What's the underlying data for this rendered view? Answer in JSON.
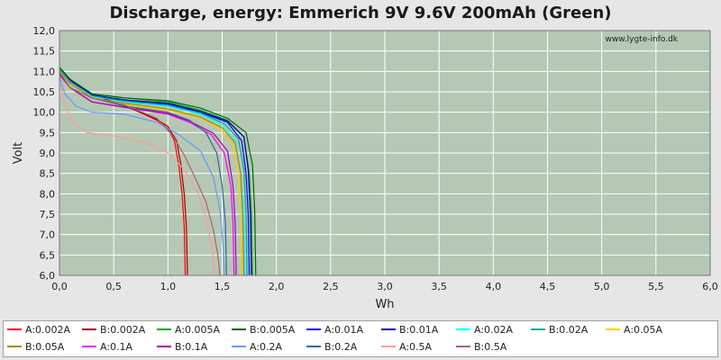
{
  "chart_data": {
    "type": "line",
    "title": "Discharge, energy: Emmerich 9V 9.6V 200mAh (Green)",
    "xlabel": "Wh",
    "ylabel": "Volt",
    "xlim": [
      0,
      6
    ],
    "ylim": [
      6,
      12
    ],
    "xticks": [
      "0,0",
      "0,5",
      "1,0",
      "1,5",
      "2,0",
      "2,5",
      "3,0",
      "3,5",
      "4,0",
      "4,5",
      "5,0",
      "5,5",
      "6,0"
    ],
    "yticks": [
      "6,0",
      "6,5",
      "7,0",
      "7,5",
      "8,0",
      "8,5",
      "9,0",
      "9,5",
      "10,0",
      "10,5",
      "11,0",
      "11,5",
      "12,0"
    ],
    "grid": true,
    "watermark": "www.lygte-info.dk",
    "legend_position": "bottom",
    "plot_background": "#b4c8b4",
    "series": [
      {
        "name": "A:0.002A",
        "color": "#ff0000",
        "points": [
          [
            0,
            11.05
          ],
          [
            0.1,
            10.75
          ],
          [
            0.3,
            10.45
          ],
          [
            0.5,
            10.25
          ],
          [
            0.7,
            10.05
          ],
          [
            0.9,
            9.8
          ],
          [
            1.0,
            9.6
          ],
          [
            1.06,
            9.3
          ],
          [
            1.1,
            8.7
          ],
          [
            1.13,
            8.0
          ],
          [
            1.15,
            7.2
          ],
          [
            1.16,
            6.0
          ]
        ]
      },
      {
        "name": "B:0.002A",
        "color": "#aa0000",
        "points": [
          [
            0,
            11.05
          ],
          [
            0.1,
            10.75
          ],
          [
            0.3,
            10.45
          ],
          [
            0.5,
            10.25
          ],
          [
            0.7,
            10.05
          ],
          [
            0.9,
            9.82
          ],
          [
            1.0,
            9.65
          ],
          [
            1.08,
            9.3
          ],
          [
            1.12,
            8.7
          ],
          [
            1.15,
            8.0
          ],
          [
            1.17,
            7.2
          ],
          [
            1.18,
            6.0
          ]
        ]
      },
      {
        "name": "A:0.005A",
        "color": "#00aa00",
        "points": [
          [
            0,
            11.1
          ],
          [
            0.1,
            10.8
          ],
          [
            0.3,
            10.45
          ],
          [
            0.6,
            10.35
          ],
          [
            1.0,
            10.25
          ],
          [
            1.3,
            10.05
          ],
          [
            1.55,
            9.8
          ],
          [
            1.7,
            9.4
          ],
          [
            1.75,
            8.5
          ],
          [
            1.77,
            7.5
          ],
          [
            1.78,
            6.0
          ]
        ]
      },
      {
        "name": "B:0.005A",
        "color": "#006600",
        "points": [
          [
            0,
            11.1
          ],
          [
            0.1,
            10.8
          ],
          [
            0.3,
            10.45
          ],
          [
            0.6,
            10.35
          ],
          [
            1.0,
            10.28
          ],
          [
            1.3,
            10.1
          ],
          [
            1.55,
            9.85
          ],
          [
            1.72,
            9.5
          ],
          [
            1.78,
            8.7
          ],
          [
            1.8,
            7.6
          ],
          [
            1.81,
            6.0
          ]
        ]
      },
      {
        "name": "A:0.01A",
        "color": "#0000ff",
        "points": [
          [
            0,
            11.05
          ],
          [
            0.1,
            10.78
          ],
          [
            0.3,
            10.42
          ],
          [
            0.6,
            10.3
          ],
          [
            1.0,
            10.2
          ],
          [
            1.3,
            10.0
          ],
          [
            1.55,
            9.75
          ],
          [
            1.68,
            9.3
          ],
          [
            1.72,
            8.5
          ],
          [
            1.74,
            7.5
          ],
          [
            1.75,
            6.0
          ]
        ]
      },
      {
        "name": "B:0.01A",
        "color": "#0000aa",
        "points": [
          [
            0,
            11.05
          ],
          [
            0.1,
            10.78
          ],
          [
            0.3,
            10.42
          ],
          [
            0.6,
            10.3
          ],
          [
            1.0,
            10.22
          ],
          [
            1.3,
            10.02
          ],
          [
            1.55,
            9.78
          ],
          [
            1.7,
            9.4
          ],
          [
            1.74,
            8.6
          ],
          [
            1.76,
            7.5
          ],
          [
            1.77,
            6.0
          ]
        ]
      },
      {
        "name": "A:0.02A",
        "color": "#00ffff",
        "points": [
          [
            0,
            11.05
          ],
          [
            0.1,
            10.75
          ],
          [
            0.3,
            10.4
          ],
          [
            0.6,
            10.25
          ],
          [
            1.0,
            10.15
          ],
          [
            1.3,
            9.95
          ],
          [
            1.5,
            9.7
          ],
          [
            1.62,
            9.3
          ],
          [
            1.67,
            8.5
          ],
          [
            1.7,
            7.5
          ],
          [
            1.71,
            6.0
          ]
        ]
      },
      {
        "name": "B:0.02A",
        "color": "#00aaaa",
        "points": [
          [
            0,
            11.05
          ],
          [
            0.1,
            10.75
          ],
          [
            0.3,
            10.4
          ],
          [
            0.6,
            10.27
          ],
          [
            1.0,
            10.17
          ],
          [
            1.3,
            9.98
          ],
          [
            1.52,
            9.72
          ],
          [
            1.65,
            9.35
          ],
          [
            1.7,
            8.6
          ],
          [
            1.72,
            7.5
          ],
          [
            1.73,
            6.0
          ]
        ]
      },
      {
        "name": "A:0.05A",
        "color": "#ffcc00",
        "points": [
          [
            0,
            11.0
          ],
          [
            0.1,
            10.7
          ],
          [
            0.3,
            10.35
          ],
          [
            0.6,
            10.2
          ],
          [
            1.0,
            10.05
          ],
          [
            1.3,
            9.85
          ],
          [
            1.48,
            9.6
          ],
          [
            1.6,
            9.2
          ],
          [
            1.65,
            8.4
          ],
          [
            1.67,
            7.4
          ],
          [
            1.68,
            6.0
          ]
        ]
      },
      {
        "name": "B:0.05A",
        "color": "#aa8800",
        "points": [
          [
            0,
            11.0
          ],
          [
            0.1,
            10.7
          ],
          [
            0.3,
            10.35
          ],
          [
            0.6,
            10.22
          ],
          [
            1.0,
            10.08
          ],
          [
            1.3,
            9.88
          ],
          [
            1.5,
            9.62
          ],
          [
            1.62,
            9.25
          ],
          [
            1.67,
            8.5
          ],
          [
            1.69,
            7.4
          ],
          [
            1.7,
            6.0
          ]
        ]
      },
      {
        "name": "A:0.1A",
        "color": "#ff00ff",
        "points": [
          [
            0,
            10.95
          ],
          [
            0.1,
            10.6
          ],
          [
            0.3,
            10.25
          ],
          [
            0.6,
            10.12
          ],
          [
            1.0,
            9.95
          ],
          [
            1.2,
            9.75
          ],
          [
            1.4,
            9.45
          ],
          [
            1.52,
            9.0
          ],
          [
            1.58,
            8.2
          ],
          [
            1.6,
            7.3
          ],
          [
            1.61,
            6.0
          ]
        ]
      },
      {
        "name": "B:0.1A",
        "color": "#aa00aa",
        "points": [
          [
            0,
            10.95
          ],
          [
            0.1,
            10.6
          ],
          [
            0.3,
            10.25
          ],
          [
            0.6,
            10.12
          ],
          [
            1.0,
            9.97
          ],
          [
            1.2,
            9.78
          ],
          [
            1.42,
            9.48
          ],
          [
            1.55,
            9.05
          ],
          [
            1.6,
            8.2
          ],
          [
            1.62,
            7.3
          ],
          [
            1.63,
            6.0
          ]
        ]
      },
      {
        "name": "A:0.2A",
        "color": "#6699ff",
        "points": [
          [
            0,
            10.85
          ],
          [
            0.05,
            10.45
          ],
          [
            0.15,
            10.15
          ],
          [
            0.3,
            10.0
          ],
          [
            0.6,
            9.95
          ],
          [
            0.9,
            9.75
          ],
          [
            1.1,
            9.45
          ],
          [
            1.3,
            9.05
          ],
          [
            1.42,
            8.4
          ],
          [
            1.48,
            7.6
          ],
          [
            1.51,
            6.7
          ],
          [
            1.52,
            6.0
          ]
        ]
      },
      {
        "name": "B:0.2A",
        "color": "#336699",
        "points": [
          [
            0,
            10.9
          ],
          [
            0.1,
            10.6
          ],
          [
            0.3,
            10.35
          ],
          [
            0.6,
            10.15
          ],
          [
            1.0,
            10.0
          ],
          [
            1.2,
            9.8
          ],
          [
            1.35,
            9.5
          ],
          [
            1.45,
            9.0
          ],
          [
            1.5,
            8.2
          ],
          [
            1.53,
            7.3
          ],
          [
            1.54,
            6.0
          ]
        ]
      },
      {
        "name": "A:0.5A",
        "color": "#ff9999",
        "points": [
          [
            0,
            10.75
          ],
          [
            0.05,
            10.2
          ],
          [
            0.12,
            9.75
          ],
          [
            0.25,
            9.5
          ],
          [
            0.5,
            9.42
          ],
          [
            0.8,
            9.25
          ],
          [
            1.0,
            9.0
          ],
          [
            1.15,
            8.6
          ],
          [
            1.28,
            8.0
          ],
          [
            1.36,
            7.3
          ],
          [
            1.41,
            6.6
          ],
          [
            1.43,
            6.0
          ]
        ]
      },
      {
        "name": "B:0.5A",
        "color": "#aa6666",
        "points": [
          [
            0,
            10.9
          ],
          [
            0.1,
            10.6
          ],
          [
            0.3,
            10.35
          ],
          [
            0.6,
            10.18
          ],
          [
            0.9,
            9.85
          ],
          [
            1.05,
            9.4
          ],
          [
            1.15,
            8.95
          ],
          [
            1.25,
            8.4
          ],
          [
            1.35,
            7.8
          ],
          [
            1.42,
            7.1
          ],
          [
            1.46,
            6.5
          ],
          [
            1.48,
            6.0
          ]
        ]
      }
    ]
  }
}
